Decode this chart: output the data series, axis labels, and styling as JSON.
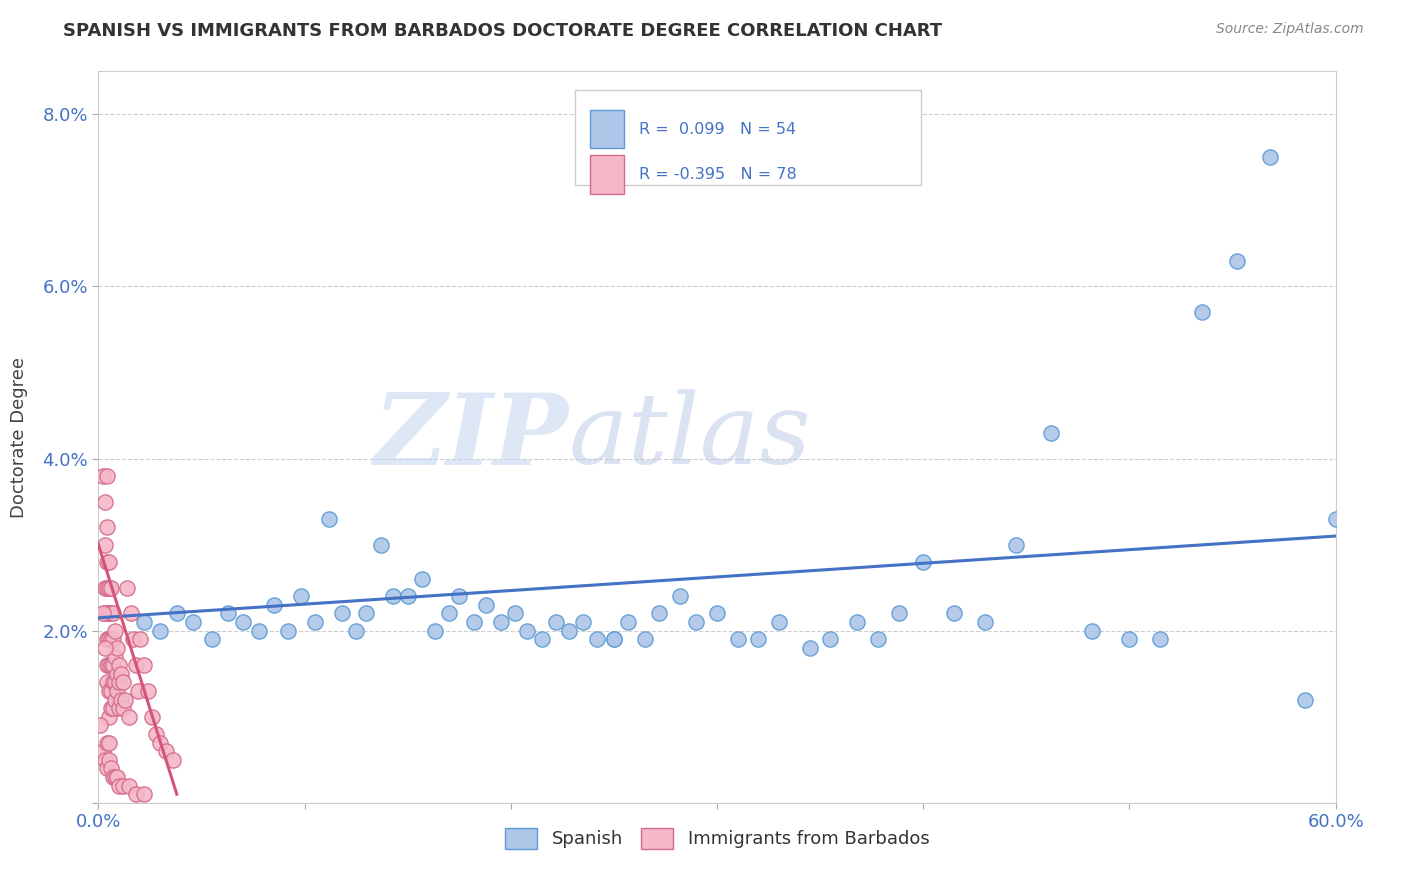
{
  "title": "SPANISH VS IMMIGRANTS FROM BARBADOS DOCTORATE DEGREE CORRELATION CHART",
  "source": "Source: ZipAtlas.com",
  "ylabel": "Doctorate Degree",
  "xlabel": "",
  "xlim": [
    0.0,
    0.6
  ],
  "ylim": [
    0.0,
    0.085
  ],
  "xticks": [
    0.0,
    0.1,
    0.2,
    0.3,
    0.4,
    0.5,
    0.6
  ],
  "xticklabels": [
    "0.0%",
    "",
    "",
    "",
    "",
    "",
    "60.0%"
  ],
  "yticks": [
    0.0,
    0.02,
    0.04,
    0.06,
    0.08
  ],
  "yticklabels": [
    "",
    "2.0%",
    "4.0%",
    "6.0%",
    "8.0%"
  ],
  "watermark_zip": "ZIP",
  "watermark_atlas": "atlas",
  "blue_color": "#aec6e8",
  "pink_color": "#f4b8c8",
  "blue_edge_color": "#5b9bd5",
  "pink_edge_color": "#d46a8a",
  "blue_line_color": "#4472c4",
  "pink_line_color": "#d4547a",
  "scatter_blue": [
    [
      0.022,
      0.021
    ],
    [
      0.03,
      0.02
    ],
    [
      0.038,
      0.022
    ],
    [
      0.046,
      0.021
    ],
    [
      0.055,
      0.019
    ],
    [
      0.063,
      0.022
    ],
    [
      0.07,
      0.021
    ],
    [
      0.078,
      0.02
    ],
    [
      0.085,
      0.023
    ],
    [
      0.092,
      0.02
    ],
    [
      0.098,
      0.024
    ],
    [
      0.105,
      0.021
    ],
    [
      0.112,
      0.033
    ],
    [
      0.118,
      0.022
    ],
    [
      0.125,
      0.02
    ],
    [
      0.13,
      0.022
    ],
    [
      0.137,
      0.03
    ],
    [
      0.143,
      0.024
    ],
    [
      0.15,
      0.024
    ],
    [
      0.157,
      0.026
    ],
    [
      0.163,
      0.02
    ],
    [
      0.17,
      0.022
    ],
    [
      0.175,
      0.024
    ],
    [
      0.182,
      0.021
    ],
    [
      0.188,
      0.023
    ],
    [
      0.195,
      0.021
    ],
    [
      0.202,
      0.022
    ],
    [
      0.208,
      0.02
    ],
    [
      0.215,
      0.019
    ],
    [
      0.222,
      0.021
    ],
    [
      0.228,
      0.02
    ],
    [
      0.235,
      0.021
    ],
    [
      0.242,
      0.019
    ],
    [
      0.25,
      0.019
    ],
    [
      0.257,
      0.021
    ],
    [
      0.265,
      0.019
    ],
    [
      0.272,
      0.022
    ],
    [
      0.282,
      0.024
    ],
    [
      0.29,
      0.021
    ],
    [
      0.3,
      0.022
    ],
    [
      0.31,
      0.019
    ],
    [
      0.32,
      0.019
    ],
    [
      0.33,
      0.021
    ],
    [
      0.345,
      0.018
    ],
    [
      0.355,
      0.019
    ],
    [
      0.368,
      0.021
    ],
    [
      0.378,
      0.019
    ],
    [
      0.388,
      0.022
    ],
    [
      0.4,
      0.028
    ],
    [
      0.415,
      0.022
    ],
    [
      0.43,
      0.021
    ],
    [
      0.445,
      0.03
    ],
    [
      0.462,
      0.043
    ],
    [
      0.482,
      0.02
    ],
    [
      0.5,
      0.019
    ],
    [
      0.515,
      0.019
    ],
    [
      0.535,
      0.057
    ],
    [
      0.552,
      0.063
    ],
    [
      0.568,
      0.075
    ],
    [
      0.585,
      0.012
    ],
    [
      0.6,
      0.033
    ],
    [
      0.25,
      0.019
    ]
  ],
  "scatter_pink": [
    [
      0.002,
      0.038
    ],
    [
      0.003,
      0.035
    ],
    [
      0.003,
      0.03
    ],
    [
      0.003,
      0.025
    ],
    [
      0.003,
      0.022
    ],
    [
      0.004,
      0.038
    ],
    [
      0.004,
      0.032
    ],
    [
      0.004,
      0.028
    ],
    [
      0.004,
      0.025
    ],
    [
      0.004,
      0.022
    ],
    [
      0.004,
      0.019
    ],
    [
      0.004,
      0.016
    ],
    [
      0.004,
      0.014
    ],
    [
      0.005,
      0.028
    ],
    [
      0.005,
      0.025
    ],
    [
      0.005,
      0.022
    ],
    [
      0.005,
      0.019
    ],
    [
      0.005,
      0.016
    ],
    [
      0.005,
      0.013
    ],
    [
      0.005,
      0.01
    ],
    [
      0.006,
      0.025
    ],
    [
      0.006,
      0.022
    ],
    [
      0.006,
      0.019
    ],
    [
      0.006,
      0.016
    ],
    [
      0.006,
      0.013
    ],
    [
      0.006,
      0.011
    ],
    [
      0.007,
      0.022
    ],
    [
      0.007,
      0.019
    ],
    [
      0.007,
      0.016
    ],
    [
      0.007,
      0.014
    ],
    [
      0.007,
      0.011
    ],
    [
      0.008,
      0.02
    ],
    [
      0.008,
      0.017
    ],
    [
      0.008,
      0.014
    ],
    [
      0.008,
      0.012
    ],
    [
      0.009,
      0.018
    ],
    [
      0.009,
      0.015
    ],
    [
      0.009,
      0.013
    ],
    [
      0.01,
      0.016
    ],
    [
      0.01,
      0.014
    ],
    [
      0.01,
      0.011
    ],
    [
      0.011,
      0.015
    ],
    [
      0.011,
      0.012
    ],
    [
      0.012,
      0.014
    ],
    [
      0.012,
      0.011
    ],
    [
      0.013,
      0.012
    ],
    [
      0.014,
      0.025
    ],
    [
      0.015,
      0.01
    ],
    [
      0.016,
      0.022
    ],
    [
      0.017,
      0.019
    ],
    [
      0.018,
      0.016
    ],
    [
      0.019,
      0.013
    ],
    [
      0.02,
      0.019
    ],
    [
      0.022,
      0.016
    ],
    [
      0.024,
      0.013
    ],
    [
      0.026,
      0.01
    ],
    [
      0.028,
      0.008
    ],
    [
      0.03,
      0.007
    ],
    [
      0.033,
      0.006
    ],
    [
      0.036,
      0.005
    ],
    [
      0.002,
      0.006
    ],
    [
      0.003,
      0.005
    ],
    [
      0.004,
      0.004
    ],
    [
      0.005,
      0.005
    ],
    [
      0.006,
      0.004
    ],
    [
      0.007,
      0.003
    ],
    [
      0.008,
      0.003
    ],
    [
      0.009,
      0.003
    ],
    [
      0.01,
      0.002
    ],
    [
      0.012,
      0.002
    ],
    [
      0.015,
      0.002
    ],
    [
      0.018,
      0.001
    ],
    [
      0.022,
      0.001
    ],
    [
      0.001,
      0.009
    ],
    [
      0.002,
      0.022
    ],
    [
      0.003,
      0.018
    ],
    [
      0.004,
      0.007
    ],
    [
      0.005,
      0.007
    ]
  ],
  "background_color": "#ffffff",
  "grid_color": "#c8c8c8"
}
